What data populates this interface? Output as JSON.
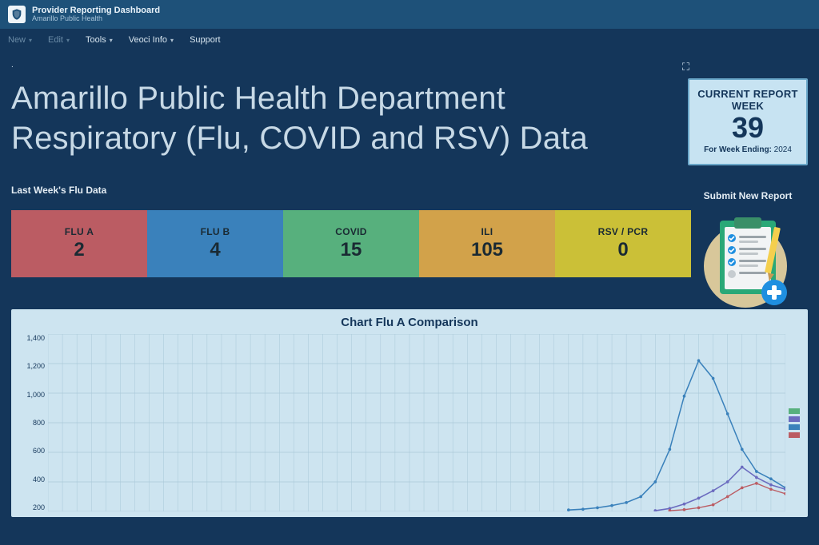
{
  "colors": {
    "bg_dark": "#14365a",
    "bg_topbar": "#1e5179",
    "text_light": "#cfe0ed",
    "text_muted": "#6a8ba6",
    "card_bg": "#c7e3f2",
    "card_border": "#6aa7c9",
    "chart_bg": "#cde4f0",
    "grid": "#a9c8d8"
  },
  "header": {
    "app_title": "Provider Reporting Dashboard",
    "app_subtitle": "Amarillo Public Health"
  },
  "menu": {
    "new": "New",
    "edit": "Edit",
    "tools": "Tools",
    "veoci": "Veoci Info",
    "support": "Support"
  },
  "hero": {
    "title": "Amarillo Public Health Department Respiratory (Flu, COVID and RSV) Data"
  },
  "week_card": {
    "label": "CURRENT REPORT WEEK",
    "number": "39",
    "ending_label": "For Week Ending:",
    "ending_value": "2024"
  },
  "submit": {
    "label": "Submit New Report"
  },
  "section_label": "Last Week's Flu Data",
  "stats": [
    {
      "label": "FLU A",
      "value": "2",
      "bg": "#bb5c63"
    },
    {
      "label": "FLU B",
      "value": "4",
      "bg": "#3a81bb"
    },
    {
      "label": "COVID",
      "value": "15",
      "bg": "#57b07d"
    },
    {
      "label": "ILI",
      "value": "105",
      "bg": "#d2a24a"
    },
    {
      "label": "RSV / PCR",
      "value": "0",
      "bg": "#cbc037"
    }
  ],
  "chart": {
    "title": "Chart Flu A Comparison",
    "type": "line",
    "ylim": [
      200,
      1400
    ],
    "ytick_step": 200,
    "yticks": [
      "1,400",
      "1,200",
      "1,000",
      "800",
      "600",
      "400",
      "200"
    ],
    "x_count": 52,
    "grid_color": "#a9c8d8",
    "background": "#cde4f0",
    "title_fontsize": 15,
    "label_fontsize": 9,
    "legend_colors": [
      "#57b07d",
      "#6b6bbf",
      "#3a81bb",
      "#bb5c63"
    ],
    "series": [
      {
        "name": "blue",
        "color": "#3a81bb",
        "width": 1.5,
        "points": [
          [
            37,
            210
          ],
          [
            38,
            215
          ],
          [
            39,
            225
          ],
          [
            40,
            240
          ],
          [
            41,
            260
          ],
          [
            42,
            300
          ],
          [
            43,
            400
          ],
          [
            44,
            620
          ],
          [
            45,
            980
          ],
          [
            46,
            1220
          ],
          [
            47,
            1100
          ],
          [
            48,
            860
          ],
          [
            49,
            620
          ],
          [
            50,
            470
          ],
          [
            51,
            420
          ],
          [
            52,
            360
          ]
        ]
      },
      {
        "name": "purple",
        "color": "#6b6bbf",
        "width": 1.5,
        "points": [
          [
            43,
            205
          ],
          [
            44,
            220
          ],
          [
            45,
            250
          ],
          [
            46,
            290
          ],
          [
            47,
            340
          ],
          [
            48,
            400
          ],
          [
            49,
            500
          ],
          [
            50,
            430
          ],
          [
            51,
            380
          ],
          [
            52,
            350
          ]
        ]
      },
      {
        "name": "red",
        "color": "#bb5c63",
        "width": 1.3,
        "points": [
          [
            44,
            205
          ],
          [
            45,
            212
          ],
          [
            46,
            225
          ],
          [
            47,
            245
          ],
          [
            48,
            300
          ],
          [
            49,
            360
          ],
          [
            50,
            390
          ],
          [
            51,
            350
          ],
          [
            52,
            320
          ]
        ]
      }
    ]
  }
}
